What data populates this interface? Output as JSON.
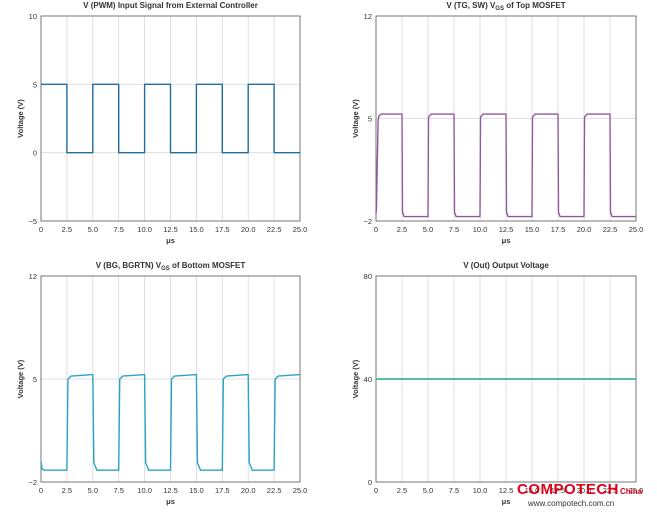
{
  "watermark": {
    "brand": "COMPOTECH",
    "region": "China",
    "url": "www.compotech.com.cn"
  },
  "colors": {
    "pwm": "#1f6e9c",
    "tg_sw": "#8e5a9e",
    "bg_bgrtn": "#2aa3c4",
    "out": "#1faa8a"
  },
  "chart_data": [
    {
      "type": "line",
      "title": "V (PWM) Input Signal from External Controller",
      "title_sub": "",
      "title_rest": "",
      "xlabel": "μs",
      "ylabel": "Voltage (V)",
      "xlim": [
        0,
        25
      ],
      "ylim": [
        -5,
        10
      ],
      "xticks": [
        "0",
        "2.5",
        "5.0",
        "7.5",
        "10.0",
        "12.5",
        "15.0",
        "17.5",
        "20.0",
        "22.5",
        "25.0"
      ],
      "yticks": [
        {
          "v": -5,
          "label": "−5"
        },
        {
          "v": 0,
          "label": "0"
        },
        {
          "v": 5,
          "label": "5"
        },
        {
          "v": 10,
          "label": "10"
        }
      ],
      "grid": true,
      "series": [
        {
          "color": "#1f6e9c",
          "x": [
            0,
            2.5,
            2.5,
            5,
            5,
            7.5,
            7.5,
            10,
            10,
            12.5,
            12.5,
            15,
            15,
            17.5,
            17.5,
            20,
            20,
            22.5,
            22.5,
            25
          ],
          "y": [
            5,
            5,
            0,
            0,
            5,
            5,
            0,
            0,
            5,
            5,
            0,
            0,
            5,
            5,
            0,
            0,
            5,
            5,
            0,
            0
          ]
        }
      ]
    },
    {
      "type": "line",
      "title": "V (TG, SW) V",
      "title_sub": "GS",
      "title_rest": " of Top MOSFET",
      "xlabel": "μs",
      "ylabel": "Voltage (V)",
      "xlim": [
        0,
        25
      ],
      "ylim": [
        -2,
        12
      ],
      "xticks": [
        "0",
        "2.5",
        "5.0",
        "7.5",
        "10.0",
        "12.5",
        "15.0",
        "17.5",
        "20.0",
        "22.5",
        "25.0"
      ],
      "yticks": [
        {
          "v": -2,
          "label": "−2"
        },
        {
          "v": 5,
          "label": "5"
        },
        {
          "v": 12,
          "label": "12"
        }
      ],
      "grid": true,
      "series": [
        {
          "color": "#8e5a9e",
          "x": [
            0,
            0.05,
            0.2,
            0.3,
            0.5,
            2.5,
            2.55,
            2.7,
            5,
            5.05,
            5.3,
            7.5,
            7.55,
            7.7,
            10,
            10.05,
            10.3,
            12.5,
            12.55,
            12.7,
            15,
            15.05,
            15.3,
            17.5,
            17.55,
            17.7,
            20,
            20.05,
            20.3,
            22.5,
            22.55,
            22.7,
            25
          ],
          "y": [
            -1.5,
            -1.0,
            4.9,
            5.2,
            5.3,
            5.3,
            -1.4,
            -1.7,
            -1.7,
            5.1,
            5.3,
            5.3,
            -1.4,
            -1.7,
            -1.7,
            5.1,
            5.3,
            5.3,
            -1.4,
            -1.7,
            -1.7,
            5.1,
            5.3,
            5.3,
            -1.4,
            -1.7,
            -1.7,
            5.1,
            5.3,
            5.3,
            -1.4,
            -1.7,
            -1.7
          ]
        }
      ]
    },
    {
      "type": "line",
      "title": "V (BG, BGRTN) V",
      "title_sub": "GS",
      "title_rest": " of Bottom MOSFET",
      "xlabel": "μs",
      "ylabel": "Voltage (V)",
      "xlim": [
        0,
        25
      ],
      "ylim": [
        -2,
        12
      ],
      "xticks": [
        "0",
        "2.5",
        "5.0",
        "7.5",
        "10.0",
        "12.5",
        "15.0",
        "17.5",
        "20.0",
        "22.5",
        "25.0"
      ],
      "yticks": [
        {
          "v": -2,
          "label": "−2"
        },
        {
          "v": 5,
          "label": "5"
        },
        {
          "v": 12,
          "label": "12"
        }
      ],
      "grid": true,
      "series": [
        {
          "color": "#2aa3c4",
          "x": [
            0,
            0.1,
            0.3,
            2.5,
            2.6,
            2.9,
            5,
            5.1,
            5.4,
            7.5,
            7.6,
            7.9,
            10,
            10.1,
            10.4,
            12.5,
            12.6,
            12.9,
            15,
            15.1,
            15.4,
            17.5,
            17.6,
            17.9,
            20,
            20.1,
            20.4,
            22.5,
            22.6,
            22.9,
            25
          ],
          "y": [
            -0.6,
            -1.1,
            -1.2,
            -1.2,
            5.0,
            5.2,
            5.3,
            -0.7,
            -1.2,
            -1.2,
            5.0,
            5.2,
            5.3,
            -0.7,
            -1.2,
            -1.2,
            5.0,
            5.2,
            5.3,
            -0.7,
            -1.2,
            -1.2,
            5.0,
            5.2,
            5.3,
            -0.7,
            -1.2,
            -1.2,
            5.0,
            5.2,
            5.3
          ]
        }
      ]
    },
    {
      "type": "line",
      "title": "V (Out) Output Voltage",
      "title_sub": "",
      "title_rest": "",
      "xlabel": "μs",
      "ylabel": "Voltage (V)",
      "xlim": [
        0,
        25
      ],
      "ylim": [
        0,
        80
      ],
      "xticks": [
        "0",
        "2.5",
        "5.0",
        "7.5",
        "10.0",
        "12.5",
        "15.0",
        "17.5",
        "20.0",
        "22.5",
        "25.0"
      ],
      "yticks": [
        {
          "v": 0,
          "label": "0"
        },
        {
          "v": 40,
          "label": "40"
        },
        {
          "v": 80,
          "label": "80"
        }
      ],
      "grid": true,
      "series": [
        {
          "color": "#1faa8a",
          "x": [
            0,
            25
          ],
          "y": [
            40,
            40
          ]
        }
      ]
    }
  ]
}
